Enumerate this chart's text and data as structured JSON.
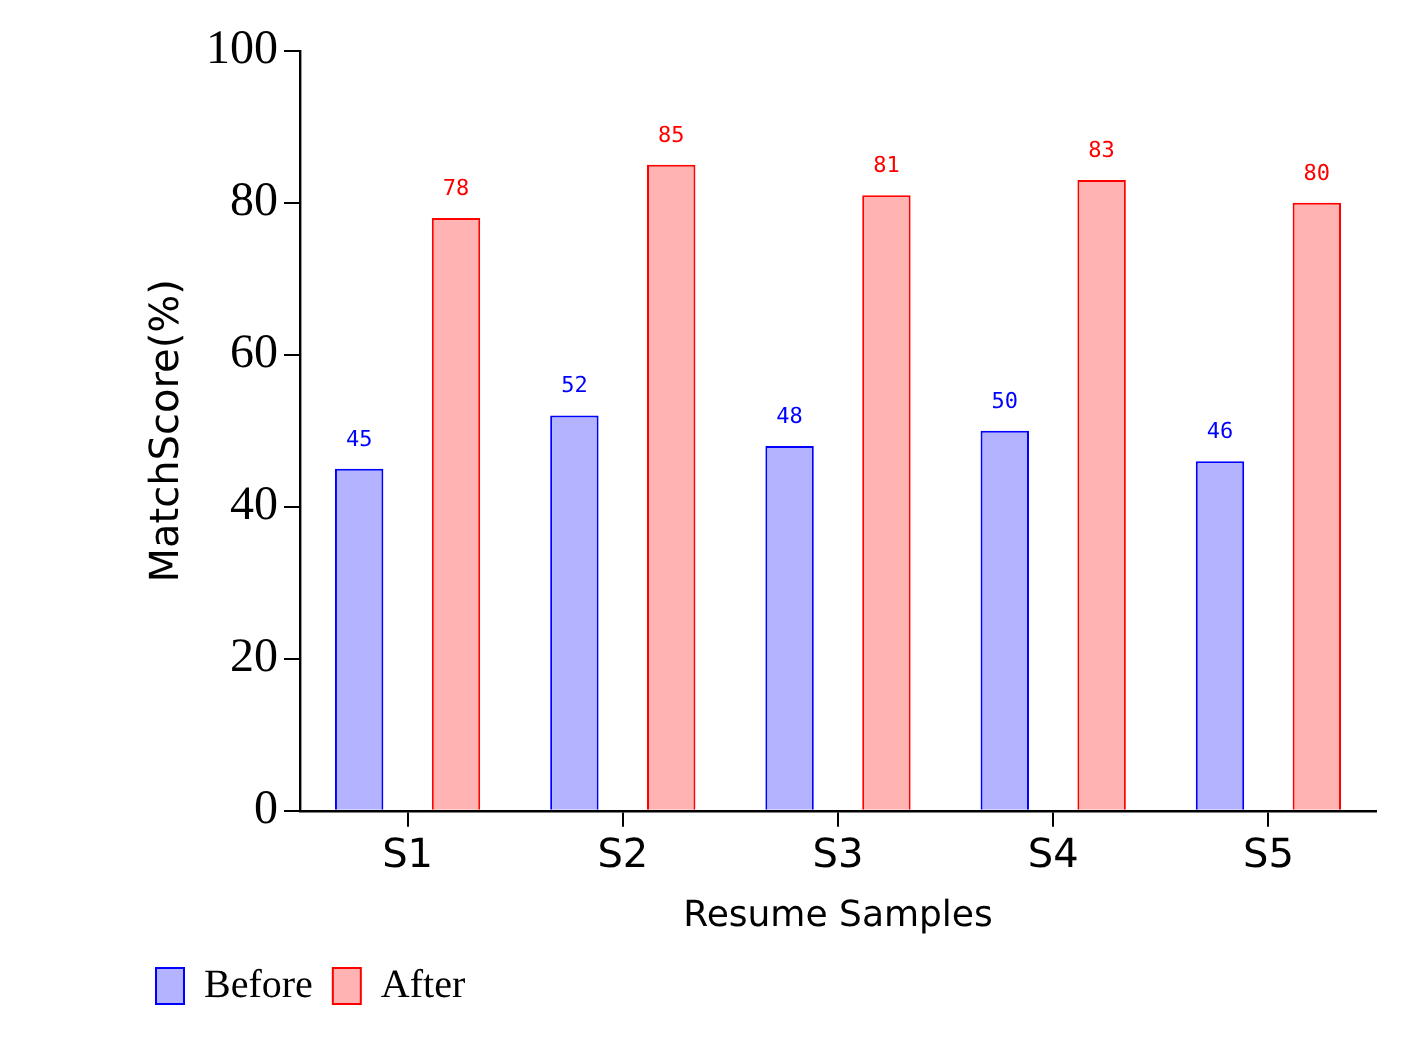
{
  "chart_data": {
    "type": "bar",
    "xlabel": "Resume Samples",
    "ylabel": "MatchScore(%)",
    "categories": [
      "S1",
      "S2",
      "S3",
      "S4",
      "S5"
    ],
    "series": [
      {
        "name": "Before",
        "color": "#b3b3ff",
        "values": [
          45,
          52,
          48,
          50,
          46
        ]
      },
      {
        "name": "After",
        "color": "#ffb3b3",
        "values": [
          78,
          85,
          81,
          83,
          80
        ]
      }
    ],
    "ylim": [
      0,
      100
    ],
    "yticks": [
      0,
      20,
      40,
      60,
      80,
      100
    ],
    "grid": false,
    "legend": "bottom left",
    "data_labels": true
  }
}
